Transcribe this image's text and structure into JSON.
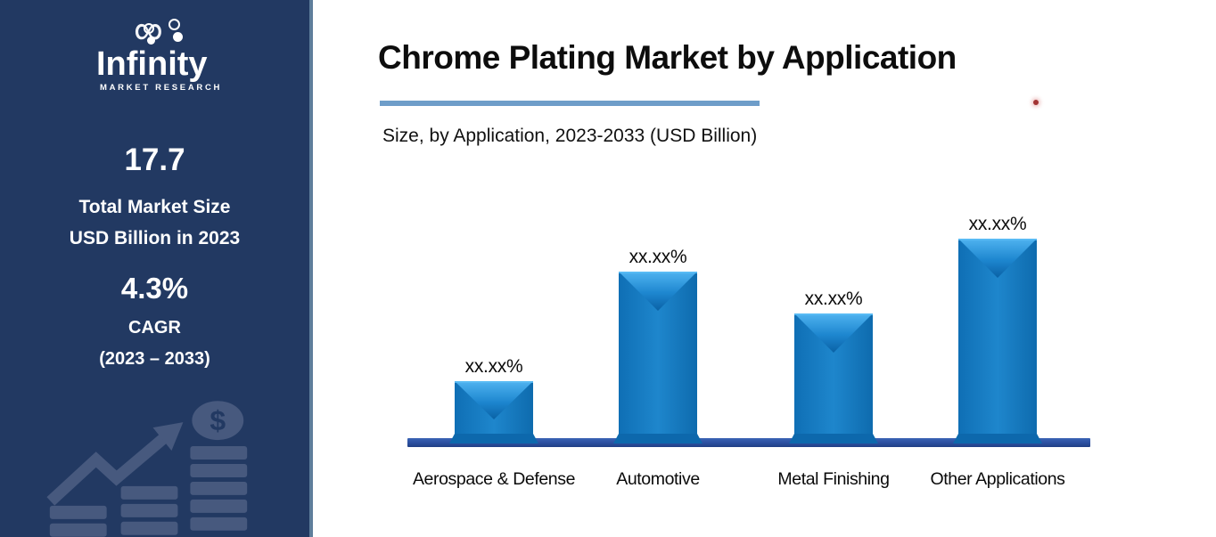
{
  "sidebar": {
    "logo": {
      "brand": "Infinity",
      "tagline": "MARKET RESEARCH"
    },
    "stats": [
      {
        "value": "17.7",
        "label_lines": [
          "Total Market Size",
          "USD Billion in 2023"
        ]
      },
      {
        "value": "4.3%",
        "label_lines": [
          "CAGR",
          "(2023 – 2033)"
        ]
      }
    ],
    "colors": {
      "background": "#223962",
      "edge_strip": "#5e7e9b",
      "watermark": "#47597e"
    }
  },
  "header": {
    "title": "Chrome Plating Market by Application",
    "subtitle": "Size, by Application, 2023-2033 (USD Billion)",
    "underline_color": "#6e9dc9"
  },
  "chart_data": {
    "type": "bar",
    "categories": [
      "Aerospace & Defense",
      "Automotive",
      "Metal Finishing",
      "Other Applications"
    ],
    "value_labels": [
      "xx.xx%",
      "xx.xx%",
      "xx.xx%",
      "xx.xx%"
    ],
    "values_relative": [
      30.4,
      83.9,
      63.5,
      100
    ],
    "title": "Chrome Plating Market by Application",
    "subtitle": "Size, by Application, 2023-2033 (USD Billion)",
    "xlabel": "",
    "ylabel": "",
    "grid": false,
    "legend": false,
    "bar_color": "#1478be",
    "bar_bevel_light": "#4fb3f0",
    "bar_bevel_dark": "#0a61a5",
    "baseline_color": "#2b4f9f",
    "label_color": "#0a0a0a"
  }
}
